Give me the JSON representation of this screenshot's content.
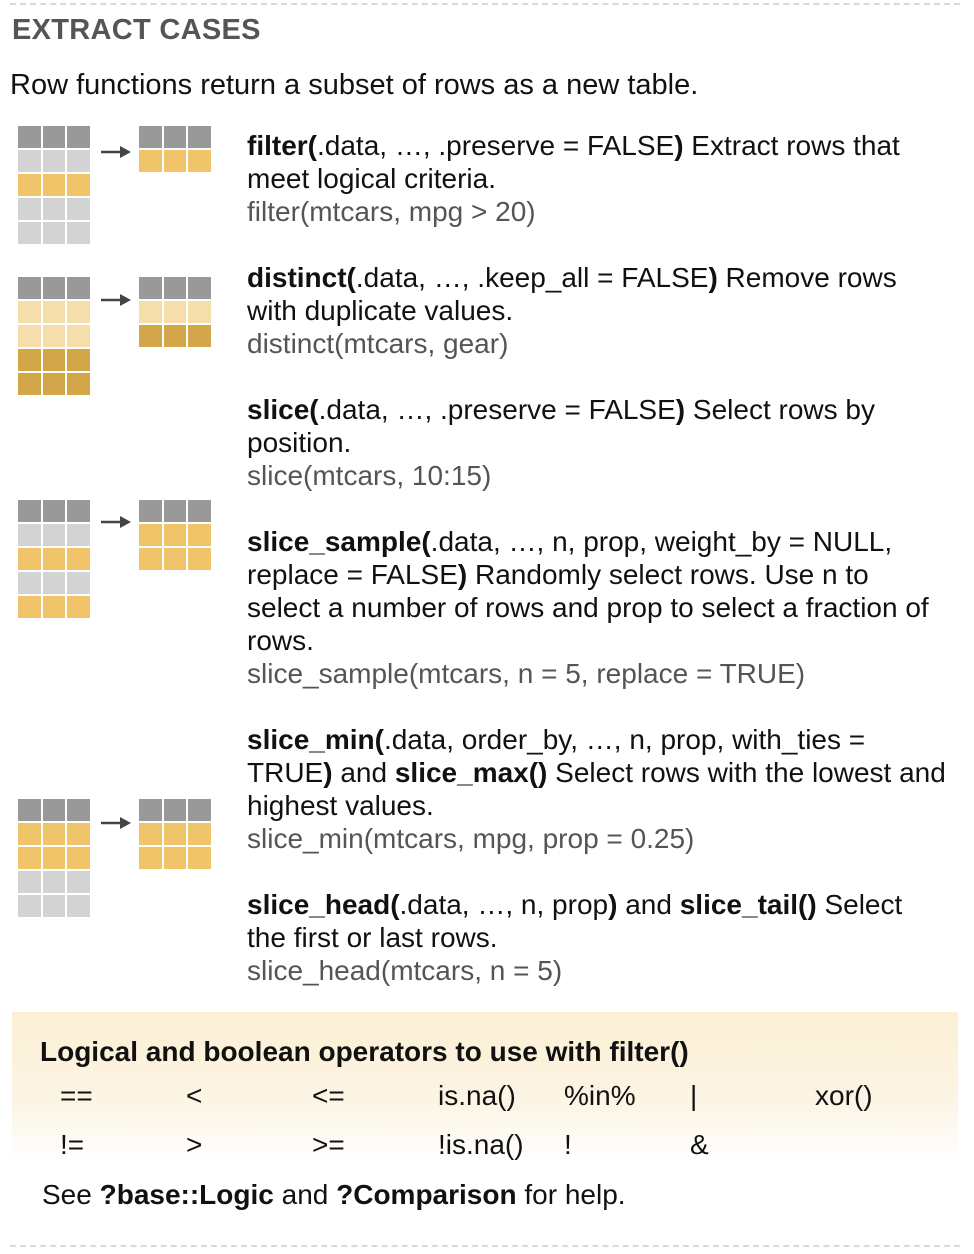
{
  "section": {
    "title": "EXTRACT CASES",
    "intro": "Row functions return a subset of rows as a new table."
  },
  "entries": [
    {
      "fn": "filter(",
      "args": ".data, …, .preserve = FALSE",
      "close": ")",
      "desc": " Extract rows that meet logical criteria.",
      "example": "filter(mtcars, mpg > 20)"
    },
    {
      "fn": "distinct(",
      "args": ".data, …, .keep_all = FALSE",
      "close": ")",
      "desc": " Remove rows with duplicate values.",
      "example": "distinct(mtcars, gear)"
    },
    {
      "fn": "slice(",
      "args": ".data, …, .preserve = FALSE",
      "close": ")",
      "desc": " Select rows by position.",
      "example": "slice(mtcars, 10:15)"
    },
    {
      "fn": "slice_sample(",
      "args": ".data, …, n, prop, weight_by = NULL, replace = FALSE",
      "close": ")",
      "desc": " Randomly select rows. Use n to select a number of rows and prop to select a fraction of rows.",
      "example": "slice_sample(mtcars, n = 5, replace = TRUE)"
    },
    {
      "fn": "slice_min(",
      "args": ".data, order_by, …, n, prop, with_ties = TRUE",
      "close": ")",
      "mid": " and ",
      "fn2": "slice_max()",
      "desc": " Select rows with the lowest and highest values.",
      "example": "slice_min(mtcars, mpg, prop = 0.25)"
    },
    {
      "fn": "slice_head(",
      "args": ".data, …, n, prop",
      "close": ")",
      "mid": " and ",
      "fn2": "slice_tail()",
      "desc": " Select the first or last rows.",
      "example": "slice_head(mtcars, n = 5)"
    }
  ],
  "operators": {
    "title": "Logical and boolean operators to use with filter()",
    "row1": [
      "==",
      "<",
      "<=",
      "is.na()",
      "%in%",
      "|",
      "xor()"
    ],
    "row2": [
      "!=",
      ">",
      ">=",
      "!is.na()",
      "!",
      "&"
    ],
    "help": {
      "see": "See ",
      "ref1": "?base::Logic",
      "and": " and ",
      "ref2": "?Comparison",
      "tail": " for help."
    }
  },
  "colors": {
    "dark_gray": "#999999",
    "light_gray": "#d3d3d3",
    "yellow": "#f0c56a",
    "light_yellow": "#f6deaa",
    "dark_yellow": "#d4a64a",
    "ops_background": "#fbefd3"
  },
  "icons": [
    "table-to-table-arrow-icon"
  ]
}
